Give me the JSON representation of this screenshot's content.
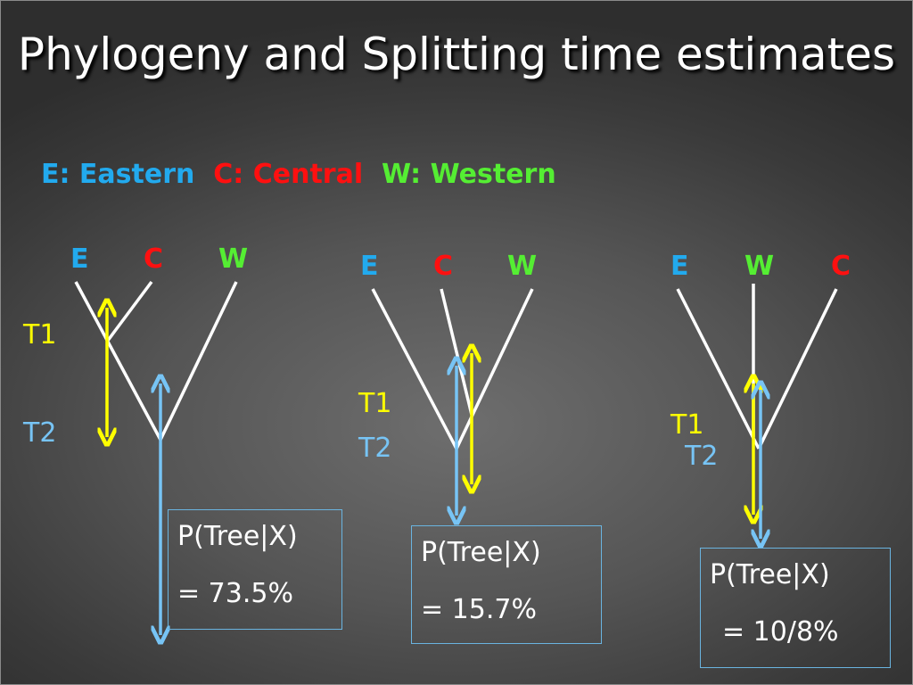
{
  "title": "Phylogeny and Splitting time estimates",
  "legend": {
    "e": "E:  Eastern",
    "c": "C:  Central",
    "w": "W: Western"
  },
  "colors": {
    "eastern": "#22aaee",
    "central": "#ff1010",
    "western": "#55ee33",
    "t1_arrow": "#ffff00",
    "t2_arrow": "#77c4f5",
    "branch": "#ffffff"
  },
  "trees": [
    {
      "tips": [
        "E",
        "C",
        "W"
      ],
      "t1_label": "T1",
      "t2_label": "T2",
      "prob_label": "P(Tree|X)",
      "prob_value": "=  73.5%"
    },
    {
      "tips": [
        "E",
        "C",
        "W"
      ],
      "t1_label": "T1",
      "t2_label": "T2",
      "prob_label": "P(Tree|X)",
      "prob_value": "=  15.7%"
    },
    {
      "tips": [
        "E",
        "W",
        "C"
      ],
      "t1_label": "T1",
      "t2_label": "T2",
      "prob_label": "P(Tree|X)",
      "prob_value": "=  10/8%"
    }
  ]
}
